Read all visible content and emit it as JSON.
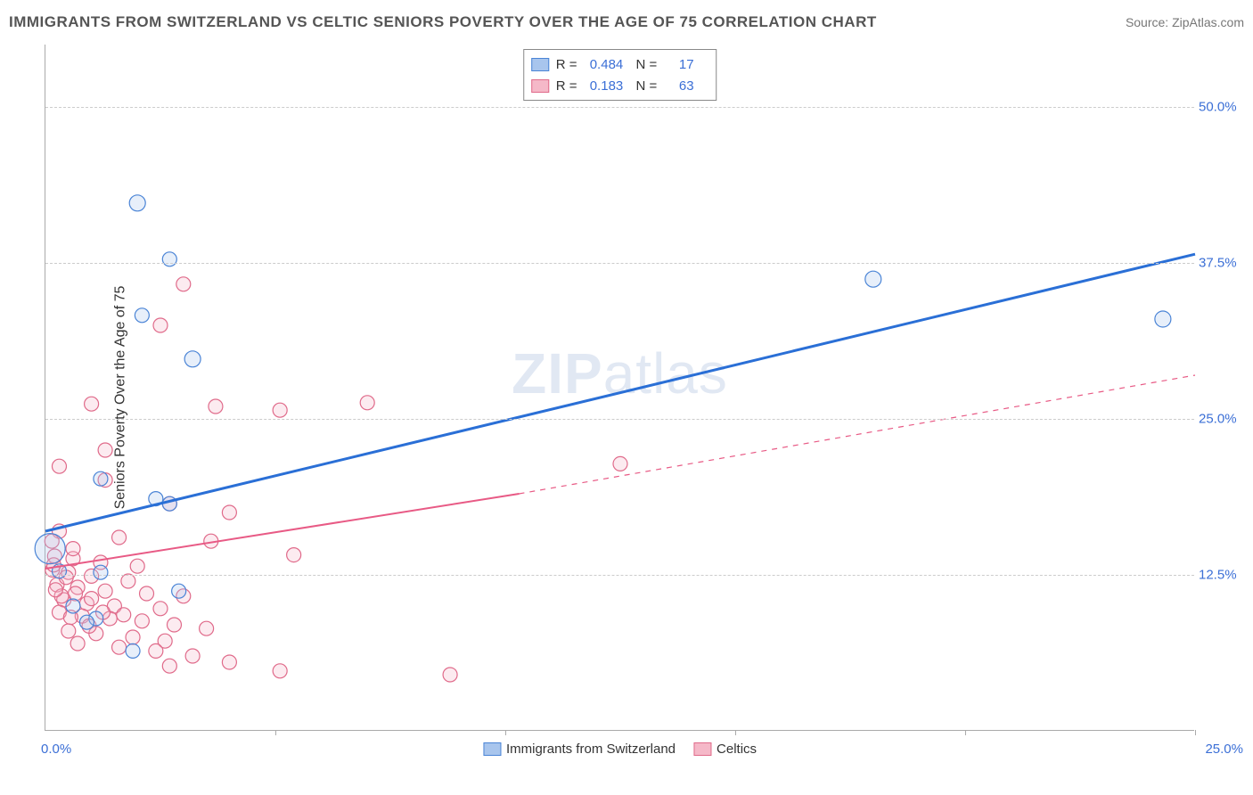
{
  "header": {
    "title": "IMMIGRANTS FROM SWITZERLAND VS CELTIC SENIORS POVERTY OVER THE AGE OF 75 CORRELATION CHART",
    "source_label": "Source: ",
    "source_value": "ZipAtlas.com"
  },
  "chart": {
    "type": "scatter",
    "ylabel": "Seniors Poverty Over the Age of 75",
    "xlim": [
      0,
      25
    ],
    "ylim": [
      0,
      55
    ],
    "yticks": [
      12.5,
      25.0,
      37.5,
      50.0
    ],
    "ytick_labels": [
      "12.5%",
      "25.0%",
      "37.5%",
      "50.0%"
    ],
    "xtick_left": "0.0%",
    "xtick_right": "25.0%",
    "xticks_mid": [
      5,
      10,
      15,
      20,
      25
    ],
    "background_color": "#ffffff",
    "grid_color": "#cccccc",
    "axis_color": "#aaaaaa",
    "tick_label_color": "#3b6fd6",
    "marker_radius": 8,
    "marker_radius_large": 17,
    "marker_stroke_width": 1.2,
    "marker_fill_opacity": 0.28,
    "trend_line_width_blue": 3,
    "trend_line_width_pink": 2
  },
  "series": {
    "blue": {
      "label": "Immigrants from Switzerland",
      "r_value": "0.484",
      "n_value": "17",
      "marker_fill": "#a8c5ed",
      "marker_stroke": "#4a84d6",
      "line_color": "#2a6fd6",
      "trend": {
        "x1": 0,
        "y1": 16.0,
        "x2": 25,
        "y2": 38.2
      },
      "points": [
        {
          "x": 2.0,
          "y": 42.3,
          "r": 9
        },
        {
          "x": 2.7,
          "y": 37.8,
          "r": 8
        },
        {
          "x": 2.1,
          "y": 33.3,
          "r": 8
        },
        {
          "x": 3.2,
          "y": 29.8,
          "r": 9
        },
        {
          "x": 1.2,
          "y": 20.2,
          "r": 8
        },
        {
          "x": 2.4,
          "y": 18.6,
          "r": 8
        },
        {
          "x": 2.7,
          "y": 18.2,
          "r": 8
        },
        {
          "x": 0.1,
          "y": 14.6,
          "r": 17
        },
        {
          "x": 0.3,
          "y": 12.8,
          "r": 8
        },
        {
          "x": 2.9,
          "y": 11.2,
          "r": 8
        },
        {
          "x": 0.6,
          "y": 10.0,
          "r": 8
        },
        {
          "x": 1.1,
          "y": 9.0,
          "r": 8
        },
        {
          "x": 0.9,
          "y": 8.7,
          "r": 8
        },
        {
          "x": 1.9,
          "y": 6.4,
          "r": 8
        },
        {
          "x": 18.0,
          "y": 36.2,
          "r": 9
        },
        {
          "x": 24.3,
          "y": 33.0,
          "r": 9
        },
        {
          "x": 1.2,
          "y": 12.7,
          "r": 8
        }
      ]
    },
    "pink": {
      "label": "Celtics",
      "r_value": "0.183",
      "n_value": "63",
      "marker_fill": "#f5b8c8",
      "marker_stroke": "#e06a8a",
      "line_color": "#e85a85",
      "trend_solid": {
        "x1": 0,
        "y1": 13.0,
        "x2": 10.3,
        "y2": 19.0
      },
      "trend_dashed": {
        "x1": 10.3,
        "y1": 19.0,
        "x2": 25,
        "y2": 28.5
      },
      "points": [
        {
          "x": 3.0,
          "y": 35.8
        },
        {
          "x": 2.5,
          "y": 32.5
        },
        {
          "x": 1.0,
          "y": 26.2
        },
        {
          "x": 3.7,
          "y": 26.0
        },
        {
          "x": 5.1,
          "y": 25.7
        },
        {
          "x": 7.0,
          "y": 26.3
        },
        {
          "x": 1.3,
          "y": 22.5
        },
        {
          "x": 0.3,
          "y": 21.2
        },
        {
          "x": 12.5,
          "y": 21.4
        },
        {
          "x": 1.3,
          "y": 20.1
        },
        {
          "x": 2.7,
          "y": 18.2
        },
        {
          "x": 4.0,
          "y": 17.5
        },
        {
          "x": 0.3,
          "y": 16.0
        },
        {
          "x": 1.6,
          "y": 15.5
        },
        {
          "x": 3.6,
          "y": 15.2
        },
        {
          "x": 5.4,
          "y": 14.1
        },
        {
          "x": 0.2,
          "y": 14.0
        },
        {
          "x": 0.6,
          "y": 13.8
        },
        {
          "x": 1.2,
          "y": 13.5
        },
        {
          "x": 2.0,
          "y": 13.2
        },
        {
          "x": 0.15,
          "y": 12.9
        },
        {
          "x": 0.5,
          "y": 12.7
        },
        {
          "x": 1.0,
          "y": 12.4
        },
        {
          "x": 1.8,
          "y": 12.0
        },
        {
          "x": 0.25,
          "y": 11.7
        },
        {
          "x": 0.7,
          "y": 11.5
        },
        {
          "x": 1.3,
          "y": 11.2
        },
        {
          "x": 2.2,
          "y": 11.0
        },
        {
          "x": 3.0,
          "y": 10.8
        },
        {
          "x": 0.4,
          "y": 10.5
        },
        {
          "x": 0.9,
          "y": 10.2
        },
        {
          "x": 1.5,
          "y": 10.0
        },
        {
          "x": 2.5,
          "y": 9.8
        },
        {
          "x": 0.3,
          "y": 9.5
        },
        {
          "x": 0.8,
          "y": 9.2
        },
        {
          "x": 1.4,
          "y": 9.0
        },
        {
          "x": 2.1,
          "y": 8.8
        },
        {
          "x": 2.8,
          "y": 8.5
        },
        {
          "x": 3.5,
          "y": 8.2
        },
        {
          "x": 0.5,
          "y": 8.0
        },
        {
          "x": 1.1,
          "y": 7.8
        },
        {
          "x": 1.9,
          "y": 7.5
        },
        {
          "x": 2.6,
          "y": 7.2
        },
        {
          "x": 0.7,
          "y": 7.0
        },
        {
          "x": 1.6,
          "y": 6.7
        },
        {
          "x": 2.4,
          "y": 6.4
        },
        {
          "x": 3.2,
          "y": 6.0
        },
        {
          "x": 4.0,
          "y": 5.5
        },
        {
          "x": 2.7,
          "y": 5.2
        },
        {
          "x": 5.1,
          "y": 4.8
        },
        {
          "x": 8.8,
          "y": 4.5
        },
        {
          "x": 0.18,
          "y": 13.3
        },
        {
          "x": 0.45,
          "y": 12.3
        },
        {
          "x": 0.65,
          "y": 11.0
        },
        {
          "x": 0.35,
          "y": 10.8
        },
        {
          "x": 1.0,
          "y": 10.6
        },
        {
          "x": 1.25,
          "y": 9.5
        },
        {
          "x": 1.7,
          "y": 9.3
        },
        {
          "x": 0.55,
          "y": 9.1
        },
        {
          "x": 0.95,
          "y": 8.4
        },
        {
          "x": 0.22,
          "y": 11.3
        },
        {
          "x": 0.14,
          "y": 15.2
        },
        {
          "x": 0.6,
          "y": 14.6
        }
      ]
    }
  },
  "watermark_prefix": "ZIP",
  "watermark_suffix": "atlas",
  "legend_labels": {
    "r_prefix": "R =",
    "n_prefix": "N ="
  }
}
